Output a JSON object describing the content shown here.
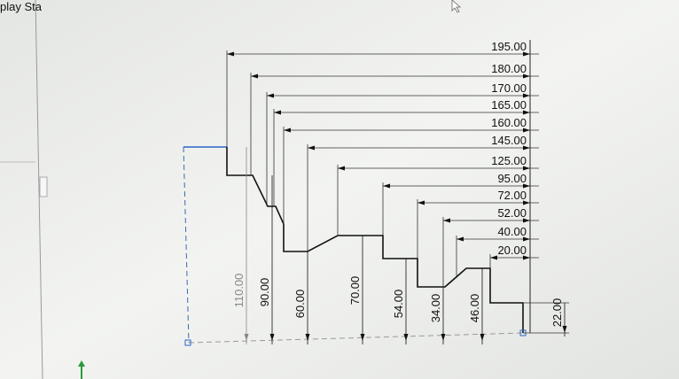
{
  "panel_label": "play Sta",
  "horizontal_dimensions": [
    "195.00",
    "180.00",
    "170.00",
    "165.00",
    "160.00",
    "145.00",
    "125.00",
    "95.00",
    "72.00",
    "52.00",
    "40.00",
    "20.00"
  ],
  "vertical_dimensions": [
    "110.00",
    "90.00",
    "60.00",
    "70.00",
    "54.00",
    "34.00",
    "46.00",
    "22.00"
  ]
}
